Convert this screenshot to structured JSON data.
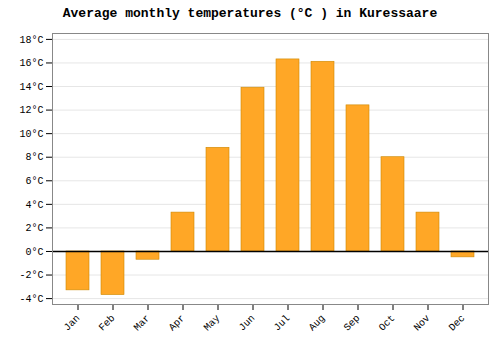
{
  "chart_data": {
    "type": "bar",
    "title": "Average monthly temperatures (°C ) in Kuressaare",
    "categories": [
      "Jan",
      "Feb",
      "Mar",
      "Apr",
      "May",
      "Jun",
      "Jul",
      "Aug",
      "Sep",
      "Oct",
      "Nov",
      "Dec"
    ],
    "values": [
      -3.3,
      -3.7,
      -0.7,
      3.3,
      8.8,
      13.9,
      16.3,
      16.1,
      12.4,
      8.0,
      3.3,
      -0.5
    ],
    "color": "#FFA726",
    "ylim": [
      -4.5,
      18.5
    ],
    "yticks": [
      {
        "value": -4,
        "label": "-4°C"
      },
      {
        "value": -2,
        "label": "-2°C"
      },
      {
        "value": 0,
        "label": "0°C"
      },
      {
        "value": 2,
        "label": "2°C"
      },
      {
        "value": 4,
        "label": "4°C"
      },
      {
        "value": 6,
        "label": "6°C"
      },
      {
        "value": 8,
        "label": "8°C"
      },
      {
        "value": 10,
        "label": "10°C"
      },
      {
        "value": 12,
        "label": "12°C"
      },
      {
        "value": 14,
        "label": "14°C"
      },
      {
        "value": 16,
        "label": "16°C"
      },
      {
        "value": 18,
        "label": "18°C"
      }
    ],
    "grid": true
  }
}
